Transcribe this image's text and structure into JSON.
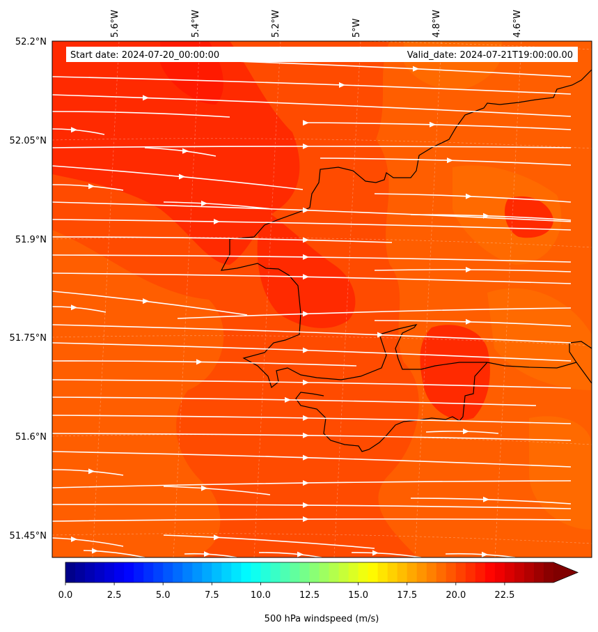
{
  "map": {
    "start_label": "Start date: 2024-07-20_00:00:00",
    "valid_label": "Valid_date: 2024-07-21T19:00:00.00",
    "lon_ticks": [
      "5.6°W",
      "5.4°W",
      "5.2°W",
      "5°W",
      "4.8°W",
      "4.6°W"
    ],
    "lat_ticks": [
      "52.2°N",
      "52.05°N",
      "51.9°N",
      "51.75°N",
      "51.6°N",
      "51.45°N"
    ],
    "field_colors": {
      "base": "#ff4b00",
      "strong": "#ff2a00",
      "strongest": "#ff1a00",
      "weaker": "#ff5e00",
      "weakest": "#ff6a00"
    },
    "streamline_color": "#ffffff",
    "coastline_color": "#000000"
  },
  "colorbar": {
    "label": "500 hPa windspeed (m/s)",
    "ticks": [
      "0.0",
      "2.5",
      "5.0",
      "7.5",
      "10.0",
      "12.5",
      "15.0",
      "17.5",
      "20.0",
      "22.5"
    ],
    "min": 0,
    "max": 25,
    "levels": 50,
    "extend": "max",
    "colormap": "jet",
    "extend_color": "#800000"
  }
}
